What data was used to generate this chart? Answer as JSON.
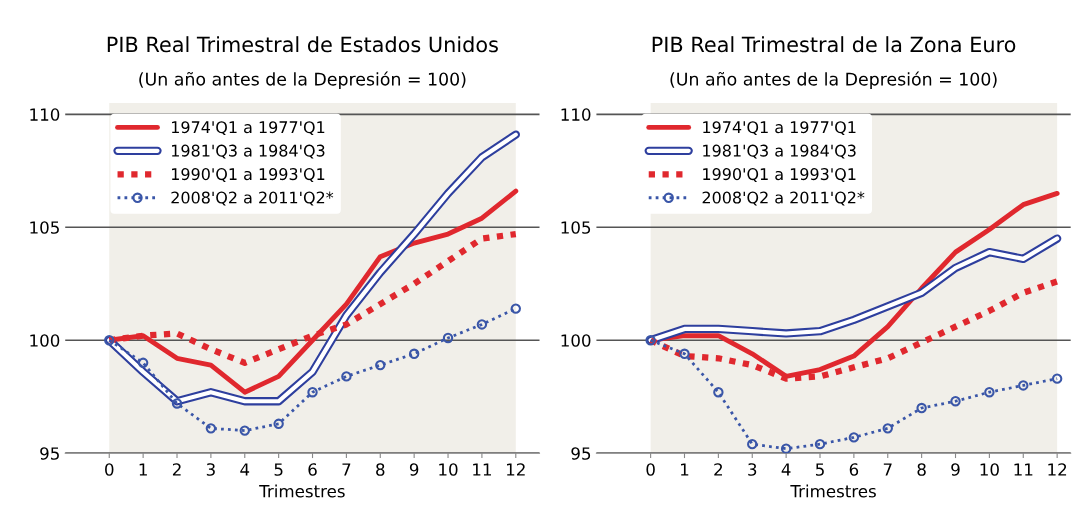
{
  "chart_data": [
    {
      "type": "line",
      "title": "PIB Real Trimestral de Estados Unidos",
      "subtitle": "(Un año antes de la Depresión = 100)",
      "xlabel": "Trimestres",
      "x": [
        0,
        1,
        2,
        3,
        4,
        5,
        6,
        7,
        8,
        9,
        10,
        11,
        12
      ],
      "xlim": [
        -1.3,
        12.7
      ],
      "xticks": [
        0,
        1,
        2,
        3,
        4,
        5,
        6,
        7,
        8,
        9,
        10,
        11,
        12
      ],
      "ylim": [
        95,
        110.5
      ],
      "yticks": [
        95,
        100,
        105,
        110
      ],
      "grid": "y",
      "legend": "top left",
      "bands": [
        {
          "axis": "x",
          "from": 0,
          "to": 12,
          "color": "#f1efe9"
        }
      ],
      "series": [
        {
          "name": "1974'Q1 a 1977'Q1",
          "color": "#e0282e",
          "line_style": "solid",
          "marker": "none",
          "values": [
            100,
            100.2,
            99.2,
            98.9,
            97.7,
            98.4,
            100.0,
            101.6,
            103.7,
            104.3,
            104.7,
            105.4,
            106.6
          ]
        },
        {
          "name": "1981'Q3 a 1984'Q3",
          "color": "#2e3f9e",
          "line_style": "solid",
          "marker": "none",
          "values": [
            100,
            98.6,
            97.3,
            97.7,
            97.3,
            97.3,
            98.6,
            101.1,
            103.0,
            104.7,
            106.5,
            108.1,
            109.1
          ]
        },
        {
          "name": "1990'Q1 a 1993'Q1",
          "color": "#e0282e",
          "line_style": "dotted",
          "marker": "none",
          "values": [
            100,
            100.2,
            100.3,
            99.6,
            99.0,
            99.6,
            100.2,
            100.7,
            101.6,
            102.5,
            103.5,
            104.5,
            104.7
          ]
        },
        {
          "name": "2008'Q2 a 2011'Q2*",
          "color": "#3a56a8",
          "line_style": "dotted",
          "marker": "circle",
          "values": [
            100,
            99.0,
            97.2,
            96.1,
            96.0,
            96.3,
            97.7,
            98.4,
            98.9,
            99.4,
            100.1,
            100.7,
            101.4
          ]
        }
      ]
    },
    {
      "type": "line",
      "title": "PIB Real Trimestral de la Zona Euro",
      "subtitle": "(Un año antes de la Depresión = 100)",
      "xlabel": "Trimestres",
      "x": [
        0,
        1,
        2,
        3,
        4,
        5,
        6,
        7,
        8,
        9,
        10,
        11,
        12
      ],
      "xlim": [
        -1.6,
        12.4
      ],
      "xticks": [
        0,
        1,
        2,
        3,
        4,
        5,
        6,
        7,
        8,
        9,
        10,
        11,
        12
      ],
      "ylim": [
        95,
        110.5
      ],
      "yticks": [
        95,
        100,
        105,
        110
      ],
      "grid": "y",
      "legend": "top left",
      "bands": [
        {
          "axis": "x",
          "from": 0,
          "to": 12,
          "color": "#f1efe9"
        }
      ],
      "series": [
        {
          "name": "1974'Q1 a 1977'Q1",
          "color": "#e0282e",
          "line_style": "solid",
          "marker": "none",
          "values": [
            100,
            100.2,
            100.2,
            99.4,
            98.4,
            98.7,
            99.3,
            100.6,
            102.3,
            103.9,
            104.9,
            106.0,
            106.5
          ]
        },
        {
          "name": "1981'Q3 a 1984'Q3",
          "color": "#2e3f9e",
          "line_style": "solid",
          "marker": "none",
          "values": [
            100,
            100.5,
            100.5,
            100.4,
            100.3,
            100.4,
            100.9,
            101.5,
            102.1,
            103.2,
            103.9,
            103.6,
            104.5
          ]
        },
        {
          "name": "1990'Q1 a 1993'Q1",
          "color": "#e0282e",
          "line_style": "dotted",
          "marker": "none",
          "values": [
            100,
            99.3,
            99.2,
            98.9,
            98.3,
            98.4,
            98.8,
            99.2,
            99.9,
            100.6,
            101.3,
            102.1,
            102.6
          ]
        },
        {
          "name": "2008'Q2 a 2011'Q2*",
          "color": "#3a56a8",
          "line_style": "dotted",
          "marker": "circle",
          "values": [
            100,
            99.4,
            97.7,
            95.4,
            95.2,
            95.4,
            95.7,
            96.1,
            97.0,
            97.3,
            97.7,
            98.0,
            98.3
          ]
        }
      ]
    }
  ]
}
